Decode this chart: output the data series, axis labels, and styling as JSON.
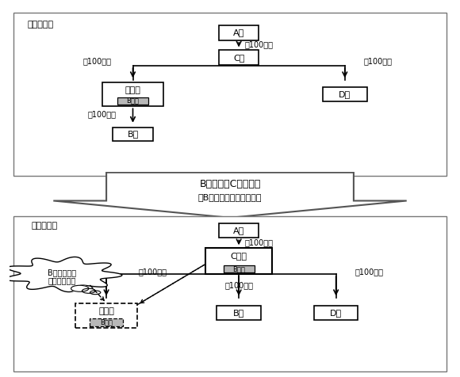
{
  "bg_color": "#ffffff",
  "section1_label": "［譲渡前］",
  "section2_label": "［譲渡後］",
  "arrow_text_line1": "B社株式をC社に譲渡",
  "arrow_text_line2": "（B社株式譲渡益の発生）",
  "cloud_text_line1": "B社株式譲渡",
  "cloud_text_line2": "益の繰延処理",
  "pct": "（100％）",
  "A_label": "A社",
  "C_label": "C社",
  "C2_label": "C　社",
  "tou_label": "当　社",
  "D_label": "D社",
  "B_label": "B社",
  "stock_label": "B社株"
}
